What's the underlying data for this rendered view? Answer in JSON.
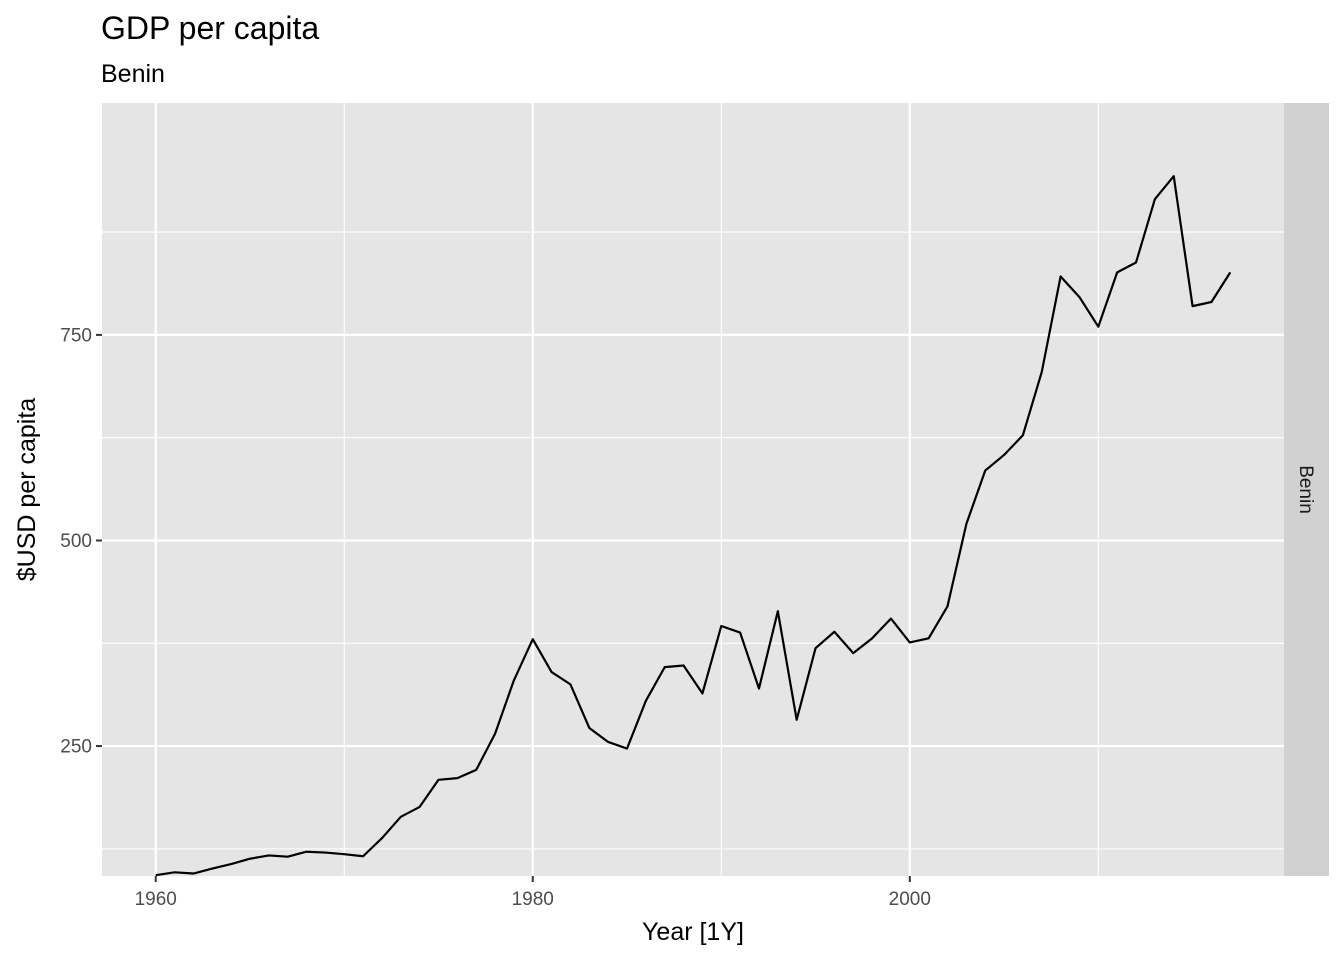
{
  "chart_data": {
    "type": "line",
    "title": "GDP per capita",
    "subtitle": "Benin",
    "xlabel": "Year [1Y]",
    "ylabel": "$USD per capita",
    "facet_label": "Benin",
    "xlim": [
      1957.15,
      2019.85
    ],
    "ylim": [
      92,
      1032
    ],
    "x_ticks": [
      1960,
      1980,
      2000
    ],
    "y_ticks": [
      250,
      500,
      750
    ],
    "grid": true,
    "line_color": "#000000",
    "panel_background": "#e5e5e5",
    "strip_background": "#d1d1d1",
    "series": [
      {
        "x": [
          1960,
          1961,
          1962,
          1963,
          1964,
          1965,
          1966,
          1967,
          1968,
          1969,
          1970,
          1971,
          1972,
          1973,
          1974,
          1975,
          1976,
          1977,
          1978,
          1979,
          1980,
          1981,
          1982,
          1983,
          1984,
          1985,
          1986,
          1987,
          1988,
          1989,
          1990,
          1991,
          1992,
          1993,
          1994,
          1995,
          1996,
          1997,
          1998,
          1999,
          2000,
          2001,
          2002,
          2003,
          2004,
          2005,
          2006,
          2007,
          2008,
          2009,
          2010,
          2011,
          2012,
          2013,
          2014,
          2015,
          2016,
          2017
        ],
        "y": [
          93.0,
          96.5,
          95.0,
          101.0,
          106.5,
          113.0,
          117.0,
          115.5,
          121.5,
          120.5,
          118.5,
          116.0,
          138.0,
          164.0,
          176.0,
          209.0,
          211.0,
          221.0,
          265.0,
          330.0,
          380.0,
          340.0,
          325.0,
          272.0,
          255.0,
          247.0,
          305.0,
          346.0,
          348.0,
          314.0,
          396.0,
          388.0,
          320.0,
          414.0,
          282.0,
          369.0,
          389.0,
          363.0,
          381.0,
          405.0,
          376.0,
          381.0,
          420.0,
          520.0,
          585.0,
          604.0,
          628.0,
          705.0,
          821.0,
          796.0,
          760.0,
          826.0,
          838.0,
          915.0,
          943.0,
          785.0,
          790.0,
          826.0
        ]
      }
    ]
  }
}
